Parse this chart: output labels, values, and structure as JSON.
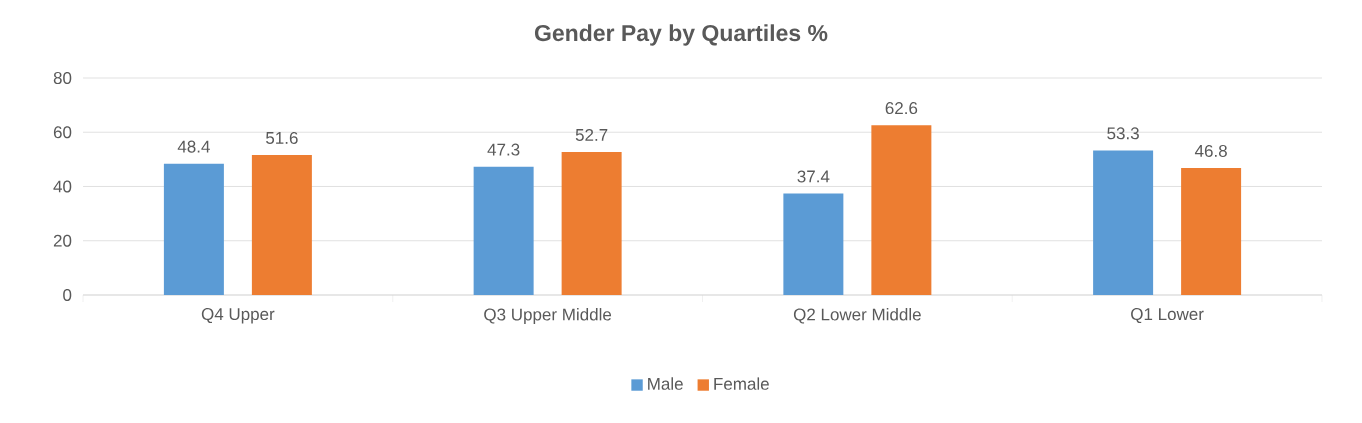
{
  "chart_data": {
    "type": "bar",
    "title": "Gender Pay by Quartiles %",
    "categories": [
      "Q4 Upper",
      "Q3 Upper Middle",
      "Q2 Lower Middle",
      "Q1 Lower"
    ],
    "series": [
      {
        "name": "Male",
        "color": "#5b9bd5",
        "values": [
          48.4,
          47.3,
          37.4,
          53.3
        ]
      },
      {
        "name": "Female",
        "color": "#ed7d31",
        "values": [
          51.6,
          52.7,
          62.6,
          46.8
        ]
      }
    ],
    "ylim": [
      0,
      80
    ],
    "yticks": [
      0,
      20,
      40,
      60,
      80
    ],
    "grid": "y",
    "legend": "bottom",
    "data_labels": true
  }
}
